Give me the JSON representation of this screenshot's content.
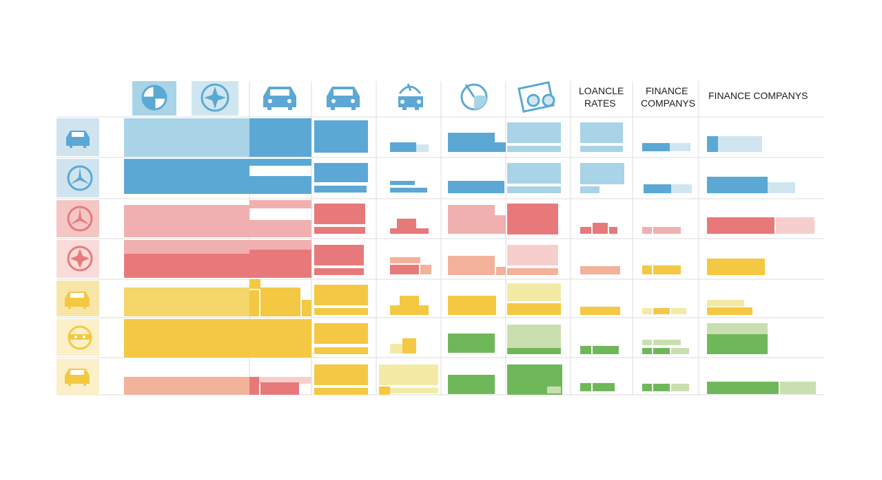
{
  "palette": {
    "blue": "#5ba8d4",
    "blue_light": "#a9d3e6",
    "blue_pale": "#cfe6f0",
    "red": "#e8797a",
    "red_light": "#f0b0b0",
    "red_pale": "#f6cfcd",
    "salmon": "#f3b29a",
    "yellow": "#f4c842",
    "yellow_light": "#f1e090",
    "yellow_pale": "#f3eaa6",
    "green": "#6fb85a",
    "green_light": "#c9dfb0",
    "grid": "#dcdcdc",
    "icon_tile_blue": "#cfe4ee",
    "icon_tile_red": "#f4c6c4",
    "icon_tile_yellow": "#f8e6a8"
  },
  "header": {
    "icons": [
      "globe-badge-icon",
      "compass-star-icon",
      "car-front-icon",
      "car-front-icon",
      "car-antenna-icon",
      "gauge-needle-icon",
      "glasses-card-icon"
    ],
    "text_columns": [
      {
        "lines": [
          "LOANCLE",
          "RATES"
        ]
      },
      {
        "lines": [
          "FINANCE",
          "COMPANYS"
        ]
      },
      {
        "lines": [
          "FINANCE COMPANYS"
        ]
      }
    ]
  },
  "rows": [
    {
      "group": "blue",
      "icon": "car-front-icon"
    },
    {
      "group": "blue",
      "icon": "star-emblem-icon"
    },
    {
      "group": "red",
      "icon": "star-emblem-icon"
    },
    {
      "group": "red",
      "icon": "star-badge-icon"
    },
    {
      "group": "yellow",
      "icon": "car-front-icon"
    },
    {
      "group": "yellow",
      "icon": "steering-face-icon"
    },
    {
      "group": "yellow",
      "icon": "car-front-icon"
    }
  ],
  "chart_data": {
    "type": "table",
    "title": "",
    "columns": [
      "col-1",
      "col-2",
      "col-3",
      "col-4",
      "col-5",
      "col-6",
      "LOANCLE RATES",
      "FINANCE COMPANYS",
      "FINANCE COMPANYS"
    ],
    "row_groups": [
      "blue",
      "blue",
      "red",
      "red",
      "yellow",
      "yellow",
      "yellow"
    ],
    "cell_fill_levels": [
      [
        1.0,
        1.0,
        0.85,
        0.45,
        0.9,
        0.9,
        0.7,
        0.45,
        0.9
      ],
      [
        1.0,
        1.0,
        0.85,
        0.6,
        0.9,
        0.9,
        0.7,
        0.5,
        0.9
      ],
      [
        1.0,
        1.0,
        0.85,
        0.45,
        0.9,
        0.9,
        0.55,
        0.5,
        1.0
      ],
      [
        1.0,
        1.0,
        0.85,
        0.65,
        0.9,
        0.9,
        0.6,
        0.5,
        0.55
      ],
      [
        1.0,
        1.0,
        0.9,
        0.55,
        0.8,
        0.95,
        0.6,
        0.6,
        0.6
      ],
      [
        1.0,
        1.0,
        0.9,
        0.45,
        0.8,
        0.95,
        0.5,
        0.55,
        0.55
      ],
      [
        1.0,
        1.0,
        0.9,
        1.0,
        0.8,
        0.95,
        0.5,
        0.6,
        1.0
      ]
    ]
  }
}
